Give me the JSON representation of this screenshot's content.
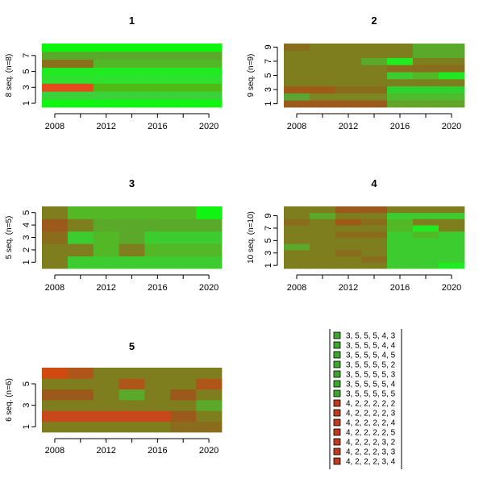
{
  "chart_data": [
    {
      "type": "heatmap",
      "title": "1",
      "ylabel": "8 seq. (n=8)",
      "x": [
        2007,
        2008,
        2009,
        2010,
        2011,
        2012,
        2013,
        2014,
        2015,
        2016,
        2017,
        2018,
        2019,
        2020,
        2021
      ],
      "xticks": [
        2008,
        2012,
        2016,
        2020
      ],
      "xlim": [
        2007,
        2021
      ],
      "yticks": [
        1,
        3,
        5,
        7
      ],
      "rows": [
        [
          "#11f311",
          "#11f311",
          "#11f311",
          "#11f311",
          "#11f311",
          "#11f311",
          "#11f311",
          "#11f311",
          "#11f311",
          "#11f311",
          "#11f311",
          "#11f311",
          "#11f311",
          "#11f311"
        ],
        [
          "#3ad23a",
          "#3ad23a",
          "#3ad23a",
          "#3ad23a",
          "#3ad23a",
          "#3ad23a",
          "#3ad23a",
          "#3ad23a",
          "#3ad23a",
          "#3ad23a",
          "#3ad23a",
          "#3ad23a",
          "#3ad23a",
          "#3ad23a"
        ],
        [
          "#e14c1a",
          "#e14c1a",
          "#e14c1a",
          "#e14c1a",
          "#50b914",
          "#50b914",
          "#50b914",
          "#50b914",
          "#50b914",
          "#50b914",
          "#50b914",
          "#50b914",
          "#50b914",
          "#50b914"
        ],
        [
          "#2ee12e",
          "#2ee12e",
          "#2ee12e",
          "#2ee12e",
          "#2ee12e",
          "#2ee12e",
          "#2ee12e",
          "#2ee12e",
          "#2ee12e",
          "#2ee12e",
          "#2ee12e",
          "#2ee12e",
          "#2ee12e",
          "#2ee12e"
        ],
        [
          "#20ea20",
          "#20ea20",
          "#20ea20",
          "#20ea20",
          "#20ea20",
          "#20ea20",
          "#20ea20",
          "#20ea20",
          "#20ea20",
          "#20ea20",
          "#20ea20",
          "#20ea20",
          "#20ea20",
          "#20ea20"
        ],
        [
          "#8c6f1c",
          "#8c6f1c",
          "#8c6f1c",
          "#8c6f1c",
          "#52b825",
          "#52b825",
          "#52b825",
          "#52b825",
          "#52b825",
          "#52b825",
          "#52b825",
          "#52b825",
          "#52b825",
          "#52b825"
        ],
        [
          "#5aa92a",
          "#5aa92a",
          "#5aa92a",
          "#5aa92a",
          "#5aa92a",
          "#5aa92a",
          "#5aa92a",
          "#5aa92a",
          "#5aa92a",
          "#5aa92a",
          "#5aa92a",
          "#5aa92a",
          "#5aa92a",
          "#5aa92a"
        ],
        [
          "#0cf50c",
          "#0cf50c",
          "#0cf50c",
          "#0cf50c",
          "#0cf50c",
          "#0cf50c",
          "#0cf50c",
          "#0cf50c",
          "#0cf50c",
          "#0cf50c",
          "#0cf50c",
          "#0cf50c",
          "#0cf50c",
          "#0cf50c"
        ]
      ]
    },
    {
      "type": "heatmap",
      "title": "2",
      "ylabel": "9 seq. (n=9)",
      "x": [
        2007,
        2008,
        2009,
        2010,
        2011,
        2012,
        2013,
        2014,
        2015,
        2016,
        2017,
        2018,
        2019,
        2020,
        2021
      ],
      "xticks": [
        2008,
        2012,
        2016,
        2020
      ],
      "xlim": [
        2007,
        2021
      ],
      "yticks": [
        1,
        3,
        5,
        7,
        9
      ],
      "rows": [
        [
          "#9b5a1c",
          "#9b5a1c",
          "#9b5a1c",
          "#9b5a1c",
          "#9b5a1c",
          "#9b5a1c",
          "#9b5a1c",
          "#9b5a1c",
          "#61a42a",
          "#61a42a",
          "#61a42a",
          "#61a42a",
          "#61a42a",
          "#61a42a"
        ],
        [
          "#5aa632",
          "#5aa632",
          "#7d8622",
          "#7d8622",
          "#7d8622",
          "#7d8622",
          "#7d8622",
          "#7d8622",
          "#4fbb2c",
          "#4fbb2c",
          "#4fbb2c",
          "#4fbb2c",
          "#4fbb2c",
          "#4fbb2c"
        ],
        [
          "#a05a18",
          "#a05a18",
          "#a05a18",
          "#a05a18",
          "#8a6d1c",
          "#8a6d1c",
          "#8a6d1c",
          "#8a6d1c",
          "#2ed22e",
          "#2ed22e",
          "#2ed22e",
          "#2ed22e",
          "#2ed22e",
          "#2ed22e"
        ],
        [
          "#7e7e1e",
          "#7e7e1e",
          "#7e7e1e",
          "#7e7e1e",
          "#7e7e1e",
          "#7e7e1e",
          "#7e7e1e",
          "#7e7e1e",
          "#7e7e1e",
          "#7e7e1e",
          "#7e7e1e",
          "#7e7e1e",
          "#7e7e1e",
          "#7e7e1e"
        ],
        [
          "#7e7e1e",
          "#7e7e1e",
          "#7e7e1e",
          "#7e7e1e",
          "#7e7e1e",
          "#7e7e1e",
          "#7e7e1e",
          "#7e7e1e",
          "#3dcc2f",
          "#3dcc2f",
          "#52b825",
          "#52b825",
          "#1fe91f",
          "#1fe91f"
        ],
        [
          "#7e7e1e",
          "#7e7e1e",
          "#7e7e1e",
          "#7e7e1e",
          "#7e7e1e",
          "#7e7e1e",
          "#7e7e1e",
          "#7e7e1e",
          "#8a6d1c",
          "#8a6d1c",
          "#8a6d1c",
          "#8a6d1c",
          "#8a6d1c",
          "#8a6d1c"
        ],
        [
          "#7e7e1e",
          "#7e7e1e",
          "#7e7e1e",
          "#7e7e1e",
          "#7e7e1e",
          "#7e7e1e",
          "#5aa92a",
          "#5aa92a",
          "#20ea20",
          "#20ea20",
          "#7e7e1e",
          "#7e7e1e",
          "#7e7e1e",
          "#7e7e1e"
        ],
        [
          "#7e7e1e",
          "#7e7e1e",
          "#7e7e1e",
          "#7e7e1e",
          "#7e7e1e",
          "#7e7e1e",
          "#7e7e1e",
          "#7e7e1e",
          "#7e7e1e",
          "#7e7e1e",
          "#5aa92a",
          "#5aa92a",
          "#5aa92a",
          "#5aa92a"
        ],
        [
          "#8a6d1c",
          "#8a6d1c",
          "#7e7e1e",
          "#7e7e1e",
          "#7e7e1e",
          "#7e7e1e",
          "#7e7e1e",
          "#7e7e1e",
          "#7e7e1e",
          "#7e7e1e",
          "#5aa92a",
          "#5aa92a",
          "#5aa92a",
          "#5aa92a"
        ]
      ]
    },
    {
      "type": "heatmap",
      "title": "3",
      "ylabel": "5 seq. (n=5)",
      "x": [
        2007,
        2008,
        2009,
        2010,
        2011,
        2012,
        2013,
        2014,
        2015,
        2016,
        2017,
        2018,
        2019,
        2020,
        2021
      ],
      "xticks": [
        2008,
        2012,
        2016,
        2020
      ],
      "xlim": [
        2007,
        2021
      ],
      "yticks": [
        1,
        2,
        3,
        4,
        5
      ],
      "rows": [
        [
          "#7e7e1e",
          "#7e7e1e",
          "#3dcc2f",
          "#3dcc2f",
          "#3dcc2f",
          "#3dcc2f",
          "#3dcc2f",
          "#3dcc2f",
          "#3dcc2f",
          "#3dcc2f",
          "#3dcc2f",
          "#3dcc2f",
          "#3dcc2f",
          "#3dcc2f"
        ],
        [
          "#7e7e1e",
          "#7e7e1e",
          "#7e7e1e",
          "#7e7e1e",
          "#52b825",
          "#52b825",
          "#7e7e1e",
          "#7e7e1e",
          "#52b825",
          "#52b825",
          "#52b825",
          "#52b825",
          "#52b825",
          "#52b825"
        ],
        [
          "#8a6d1c",
          "#8a6d1c",
          "#3dcc2f",
          "#3dcc2f",
          "#52b825",
          "#52b825",
          "#5aa92a",
          "#5aa92a",
          "#3dcc2f",
          "#3dcc2f",
          "#3dcc2f",
          "#3dcc2f",
          "#3dcc2f",
          "#3dcc2f"
        ],
        [
          "#9b5a1c",
          "#9b5a1c",
          "#7e7e1e",
          "#7e7e1e",
          "#5aa92a",
          "#5aa92a",
          "#5aa92a",
          "#5aa92a",
          "#5aa92a",
          "#5aa92a",
          "#5aa92a",
          "#5aa92a",
          "#5aa92a",
          "#5aa92a"
        ],
        [
          "#7e7e1e",
          "#7e7e1e",
          "#52b825",
          "#52b825",
          "#52b825",
          "#52b825",
          "#52b825",
          "#52b825",
          "#52b825",
          "#52b825",
          "#52b825",
          "#52b825",
          "#11f311",
          "#11f311"
        ]
      ]
    },
    {
      "type": "heatmap",
      "title": "4",
      "ylabel": "10 seq. (n=10)",
      "x": [
        2007,
        2008,
        2009,
        2010,
        2011,
        2012,
        2013,
        2014,
        2015,
        2016,
        2017,
        2018,
        2019,
        2020,
        2021
      ],
      "xticks": [
        2008,
        2012,
        2016,
        2020
      ],
      "xlim": [
        2007,
        2021
      ],
      "yticks": [
        1,
        3,
        5,
        7,
        9
      ],
      "rows": [
        [
          "#7e7e1e",
          "#7e7e1e",
          "#7e7e1e",
          "#7e7e1e",
          "#7e7e1e",
          "#7e7e1e",
          "#7e7e1e",
          "#7e7e1e",
          "#3dcc2f",
          "#3dcc2f",
          "#3dcc2f",
          "#3dcc2f",
          "#20ea20",
          "#20ea20"
        ],
        [
          "#7e7e1e",
          "#7e7e1e",
          "#7e7e1e",
          "#7e7e1e",
          "#7e7e1e",
          "#7e7e1e",
          "#8a6d1c",
          "#8a6d1c",
          "#3dcc2f",
          "#3dcc2f",
          "#3dcc2f",
          "#3dcc2f",
          "#3dcc2f",
          "#3dcc2f"
        ],
        [
          "#7e7e1e",
          "#7e7e1e",
          "#7e7e1e",
          "#7e7e1e",
          "#8a6d1c",
          "#8a6d1c",
          "#7e7e1e",
          "#7e7e1e",
          "#3dcc2f",
          "#3dcc2f",
          "#3dcc2f",
          "#3dcc2f",
          "#3dcc2f",
          "#3dcc2f"
        ],
        [
          "#5aa92a",
          "#5aa92a",
          "#7e7e1e",
          "#7e7e1e",
          "#7e7e1e",
          "#7e7e1e",
          "#7e7e1e",
          "#7e7e1e",
          "#3dcc2f",
          "#3dcc2f",
          "#3dcc2f",
          "#3dcc2f",
          "#3dcc2f",
          "#3dcc2f"
        ],
        [
          "#7e7e1e",
          "#7e7e1e",
          "#7e7e1e",
          "#7e7e1e",
          "#7e7e1e",
          "#7e7e1e",
          "#7e7e1e",
          "#7e7e1e",
          "#3dcc2f",
          "#3dcc2f",
          "#3dcc2f",
          "#3dcc2f",
          "#3dcc2f",
          "#3dcc2f"
        ],
        [
          "#7e7e1e",
          "#7e7e1e",
          "#7e7e1e",
          "#7e7e1e",
          "#8a6d1c",
          "#8a6d1c",
          "#8a6d1c",
          "#8a6d1c",
          "#3dcc2f",
          "#3dcc2f",
          "#52b825",
          "#52b825",
          "#3dcc2f",
          "#3dcc2f"
        ],
        [
          "#7e7e1e",
          "#7e7e1e",
          "#7e7e1e",
          "#7e7e1e",
          "#7e7e1e",
          "#7e7e1e",
          "#7e7e1e",
          "#7e7e1e",
          "#52b825",
          "#52b825",
          "#20ea20",
          "#20ea20",
          "#7e7e1e",
          "#7e7e1e"
        ],
        [
          "#8a6d1c",
          "#8a6d1c",
          "#7e7e1e",
          "#7e7e1e",
          "#a05a18",
          "#a05a18",
          "#8a6d1c",
          "#8a6d1c",
          "#52b825",
          "#52b825",
          "#7e7e1e",
          "#7e7e1e",
          "#7e7e1e",
          "#7e7e1e"
        ],
        [
          "#7e7e1e",
          "#7e7e1e",
          "#5aa92a",
          "#5aa92a",
          "#7e7e1e",
          "#7e7e1e",
          "#7e7e1e",
          "#7e7e1e",
          "#3dcc2f",
          "#3dcc2f",
          "#3dcc2f",
          "#3dcc2f",
          "#3dcc2f",
          "#3dcc2f"
        ],
        [
          "#7e7e1e",
          "#7e7e1e",
          "#7e7e1e",
          "#7e7e1e",
          "#9b5a1c",
          "#9b5a1c",
          "#9b5a1c",
          "#9b5a1c",
          "#7e7e1e",
          "#7e7e1e",
          "#7e7e1e",
          "#7e7e1e",
          "#7e7e1e",
          "#7e7e1e"
        ]
      ]
    },
    {
      "type": "heatmap",
      "title": "5",
      "ylabel": "6 seq. (n=6)",
      "x": [
        2007,
        2008,
        2009,
        2010,
        2011,
        2012,
        2013,
        2014,
        2015,
        2016,
        2017,
        2018,
        2019,
        2020,
        2021
      ],
      "xticks": [
        2008,
        2012,
        2016,
        2020
      ],
      "xlim": [
        2007,
        2021
      ],
      "yticks": [
        1,
        3,
        5
      ],
      "rows": [
        [
          "#7e7e1e",
          "#7e7e1e",
          "#7e7e1e",
          "#7e7e1e",
          "#7e7e1e",
          "#7e7e1e",
          "#7e7e1e",
          "#7e7e1e",
          "#7e7e1e",
          "#7e7e1e",
          "#8a6d1c",
          "#8a6d1c",
          "#8a6d1c",
          "#8a6d1c"
        ],
        [
          "#c9471a",
          "#c9471a",
          "#c9471a",
          "#c9471a",
          "#c9471a",
          "#c9471a",
          "#c9471a",
          "#c9471a",
          "#c9471a",
          "#c9471a",
          "#9b5a1c",
          "#9b5a1c",
          "#7e7e1e",
          "#7e7e1e"
        ],
        [
          "#7e7e1e",
          "#7e7e1e",
          "#7e7e1e",
          "#7e7e1e",
          "#7e7e1e",
          "#7e7e1e",
          "#7e7e1e",
          "#7e7e1e",
          "#7e7e1e",
          "#7e7e1e",
          "#7e7e1e",
          "#7e7e1e",
          "#5aa92a",
          "#5aa92a"
        ],
        [
          "#9b5a1c",
          "#9b5a1c",
          "#9b5a1c",
          "#9b5a1c",
          "#7e7e1e",
          "#7e7e1e",
          "#5aa92a",
          "#5aa92a",
          "#7e7e1e",
          "#7e7e1e",
          "#9b5a1c",
          "#9b5a1c",
          "#7e7e1e",
          "#7e7e1e"
        ],
        [
          "#7e7e1e",
          "#7e7e1e",
          "#7e7e1e",
          "#7e7e1e",
          "#7e7e1e",
          "#7e7e1e",
          "#b0551a",
          "#b0551a",
          "#7e7e1e",
          "#7e7e1e",
          "#7e7e1e",
          "#7e7e1e",
          "#b0551a",
          "#b0551a"
        ],
        [
          "#d04a10",
          "#d04a10",
          "#b0551a",
          "#b0551a",
          "#7e7e1e",
          "#7e7e1e",
          "#7e7e1e",
          "#7e7e1e",
          "#7e7e1e",
          "#7e7e1e",
          "#7e7e1e",
          "#7e7e1e",
          "#7e7e1e",
          "#7e7e1e"
        ]
      ]
    }
  ],
  "legend": {
    "placement": "bottom-right",
    "items": [
      {
        "label": "3, 5, 5, 5, 4, 3",
        "color": "#3aa82a"
      },
      {
        "label": "3, 5, 5, 5, 4, 4",
        "color": "#3aa82a"
      },
      {
        "label": "3, 5, 5, 5, 4, 5",
        "color": "#3aa82a"
      },
      {
        "label": "3, 5, 5, 5, 5, 2",
        "color": "#3aa82a"
      },
      {
        "label": "3, 5, 5, 5, 5, 3",
        "color": "#3aa82a"
      },
      {
        "label": "3, 5, 5, 5, 5, 4",
        "color": "#3aa82a"
      },
      {
        "label": "3, 5, 5, 5, 5, 5",
        "color": "#3aa82a"
      },
      {
        "label": "4, 2, 2, 2, 2, 2",
        "color": "#c0391a"
      },
      {
        "label": "4, 2, 2, 2, 2, 3",
        "color": "#c0391a"
      },
      {
        "label": "4, 2, 2, 2, 2, 4",
        "color": "#c0391a"
      },
      {
        "label": "4, 2, 2, 2, 2, 5",
        "color": "#c0391a"
      },
      {
        "label": "4, 2, 2, 2, 3, 2",
        "color": "#c0391a"
      },
      {
        "label": "4, 2, 2, 2, 3, 3",
        "color": "#c0391a"
      },
      {
        "label": "4, 2, 2, 2, 3, 4",
        "color": "#c0391a"
      }
    ]
  }
}
